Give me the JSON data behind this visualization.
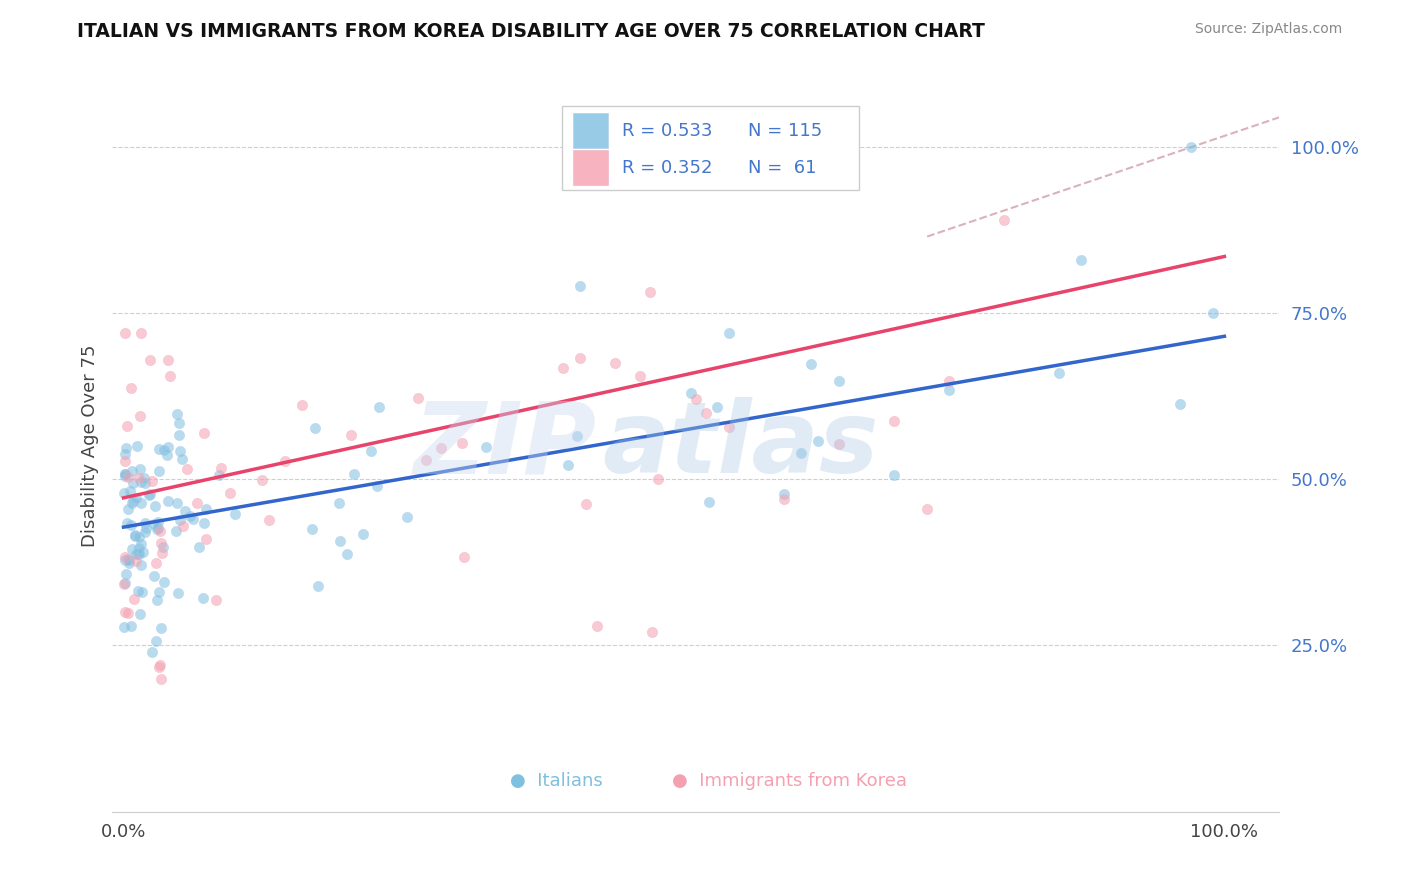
{
  "title": "ITALIAN VS IMMIGRANTS FROM KOREA DISABILITY AGE OVER 75 CORRELATION CHART",
  "source": "Source: ZipAtlas.com",
  "ylabel": "Disability Age Over 75",
  "blue_color": "#7fbfdf",
  "pink_color": "#f5a0b0",
  "blue_line_color": "#3366cc",
  "pink_line_color": "#e8436a",
  "diagonal_color": "#d0a0a8",
  "watermark_zip": "ZIP",
  "watermark_atlas": "atlas",
  "blue_r": "R = 0.533",
  "blue_n": "N = 115",
  "pink_r": "R = 0.352",
  "pink_n": "N =  61",
  "ytick_vals": [
    0.25,
    0.5,
    0.75,
    1.0
  ],
  "ytick_labels": [
    "25.0%",
    "50.0%",
    "75.0%",
    "100.0%"
  ],
  "ylim_min": 0.0,
  "ylim_max": 1.1,
  "xlim_min": -0.01,
  "xlim_max": 1.05,
  "blue_line_x0": 0.0,
  "blue_line_y0": 0.428,
  "blue_line_x1": 1.0,
  "blue_line_y1": 0.715,
  "pink_line_x0": 0.0,
  "pink_line_y0": 0.472,
  "pink_line_x1": 1.0,
  "pink_line_y1": 0.835,
  "diag_line_x0": 0.73,
  "diag_line_y0": 0.865,
  "diag_line_x1": 1.06,
  "diag_line_y1": 1.05
}
